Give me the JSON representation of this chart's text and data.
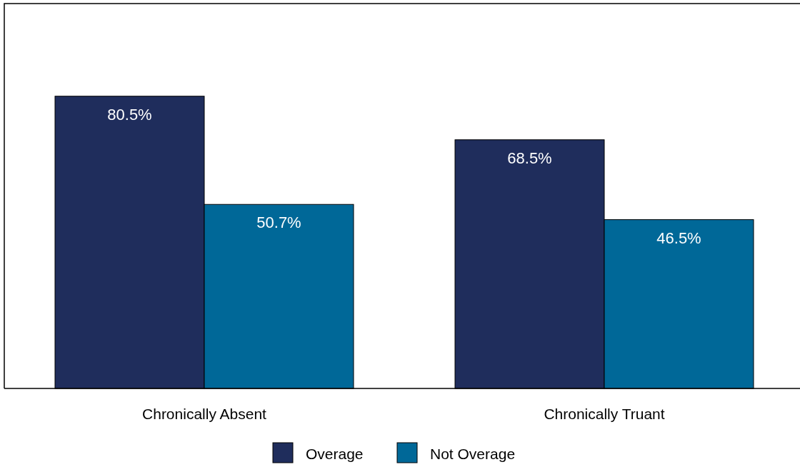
{
  "chart_data": {
    "type": "bar",
    "categories": [
      "Chronically Absent",
      "Chronically Truant"
    ],
    "series": [
      {
        "name": "Overage",
        "color": "#1f2d5c",
        "values": [
          80.5,
          68.5
        ],
        "value_labels": [
          "80.5%",
          "68.5%"
        ]
      },
      {
        "name": "Not Overage",
        "color": "#006898",
        "values": [
          50.7,
          46.5
        ],
        "value_labels": [
          "50.7%",
          "46.5%"
        ]
      }
    ],
    "legend": "bottom"
  }
}
